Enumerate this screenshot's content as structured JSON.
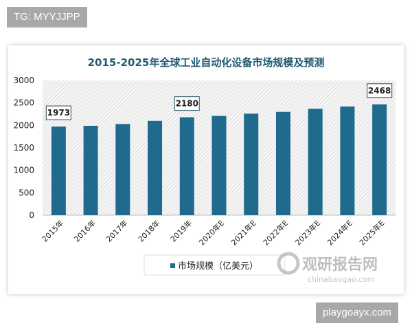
{
  "overlay": {
    "top_left_tag": "TG: MYYJJPP",
    "bottom_right_tag": "playgoayx.com"
  },
  "watermark": {
    "logo": "观研报告网",
    "site": "chinabaogao.com"
  },
  "colors": {
    "bar": "#1f6b8e",
    "title": "#1f5a72",
    "hatch": "#d4d4d4"
  },
  "chart_data": {
    "type": "bar",
    "title": "2015-2025年全球工业自动化设备市场规模及预测",
    "categories": [
      "2015年",
      "2016年",
      "2017年",
      "2018年",
      "2019年",
      "2020年E",
      "2021年E",
      "2022年E",
      "2023年E",
      "2024年E",
      "2025年E"
    ],
    "series": [
      {
        "name": "市场规模（亿美元）",
        "values": [
          1973,
          1990,
          2030,
          2100,
          2180,
          2210,
          2260,
          2300,
          2370,
          2420,
          2468
        ]
      }
    ],
    "data_labels": {
      "0": "1973",
      "4": "2180",
      "10": "2468"
    },
    "yticks": [
      "0",
      "500",
      "1000",
      "1500",
      "2000",
      "2500",
      "3000"
    ],
    "ylim": [
      0,
      3000
    ],
    "grid": false,
    "legend": "bottom",
    "xlabel": "",
    "ylabel": ""
  }
}
